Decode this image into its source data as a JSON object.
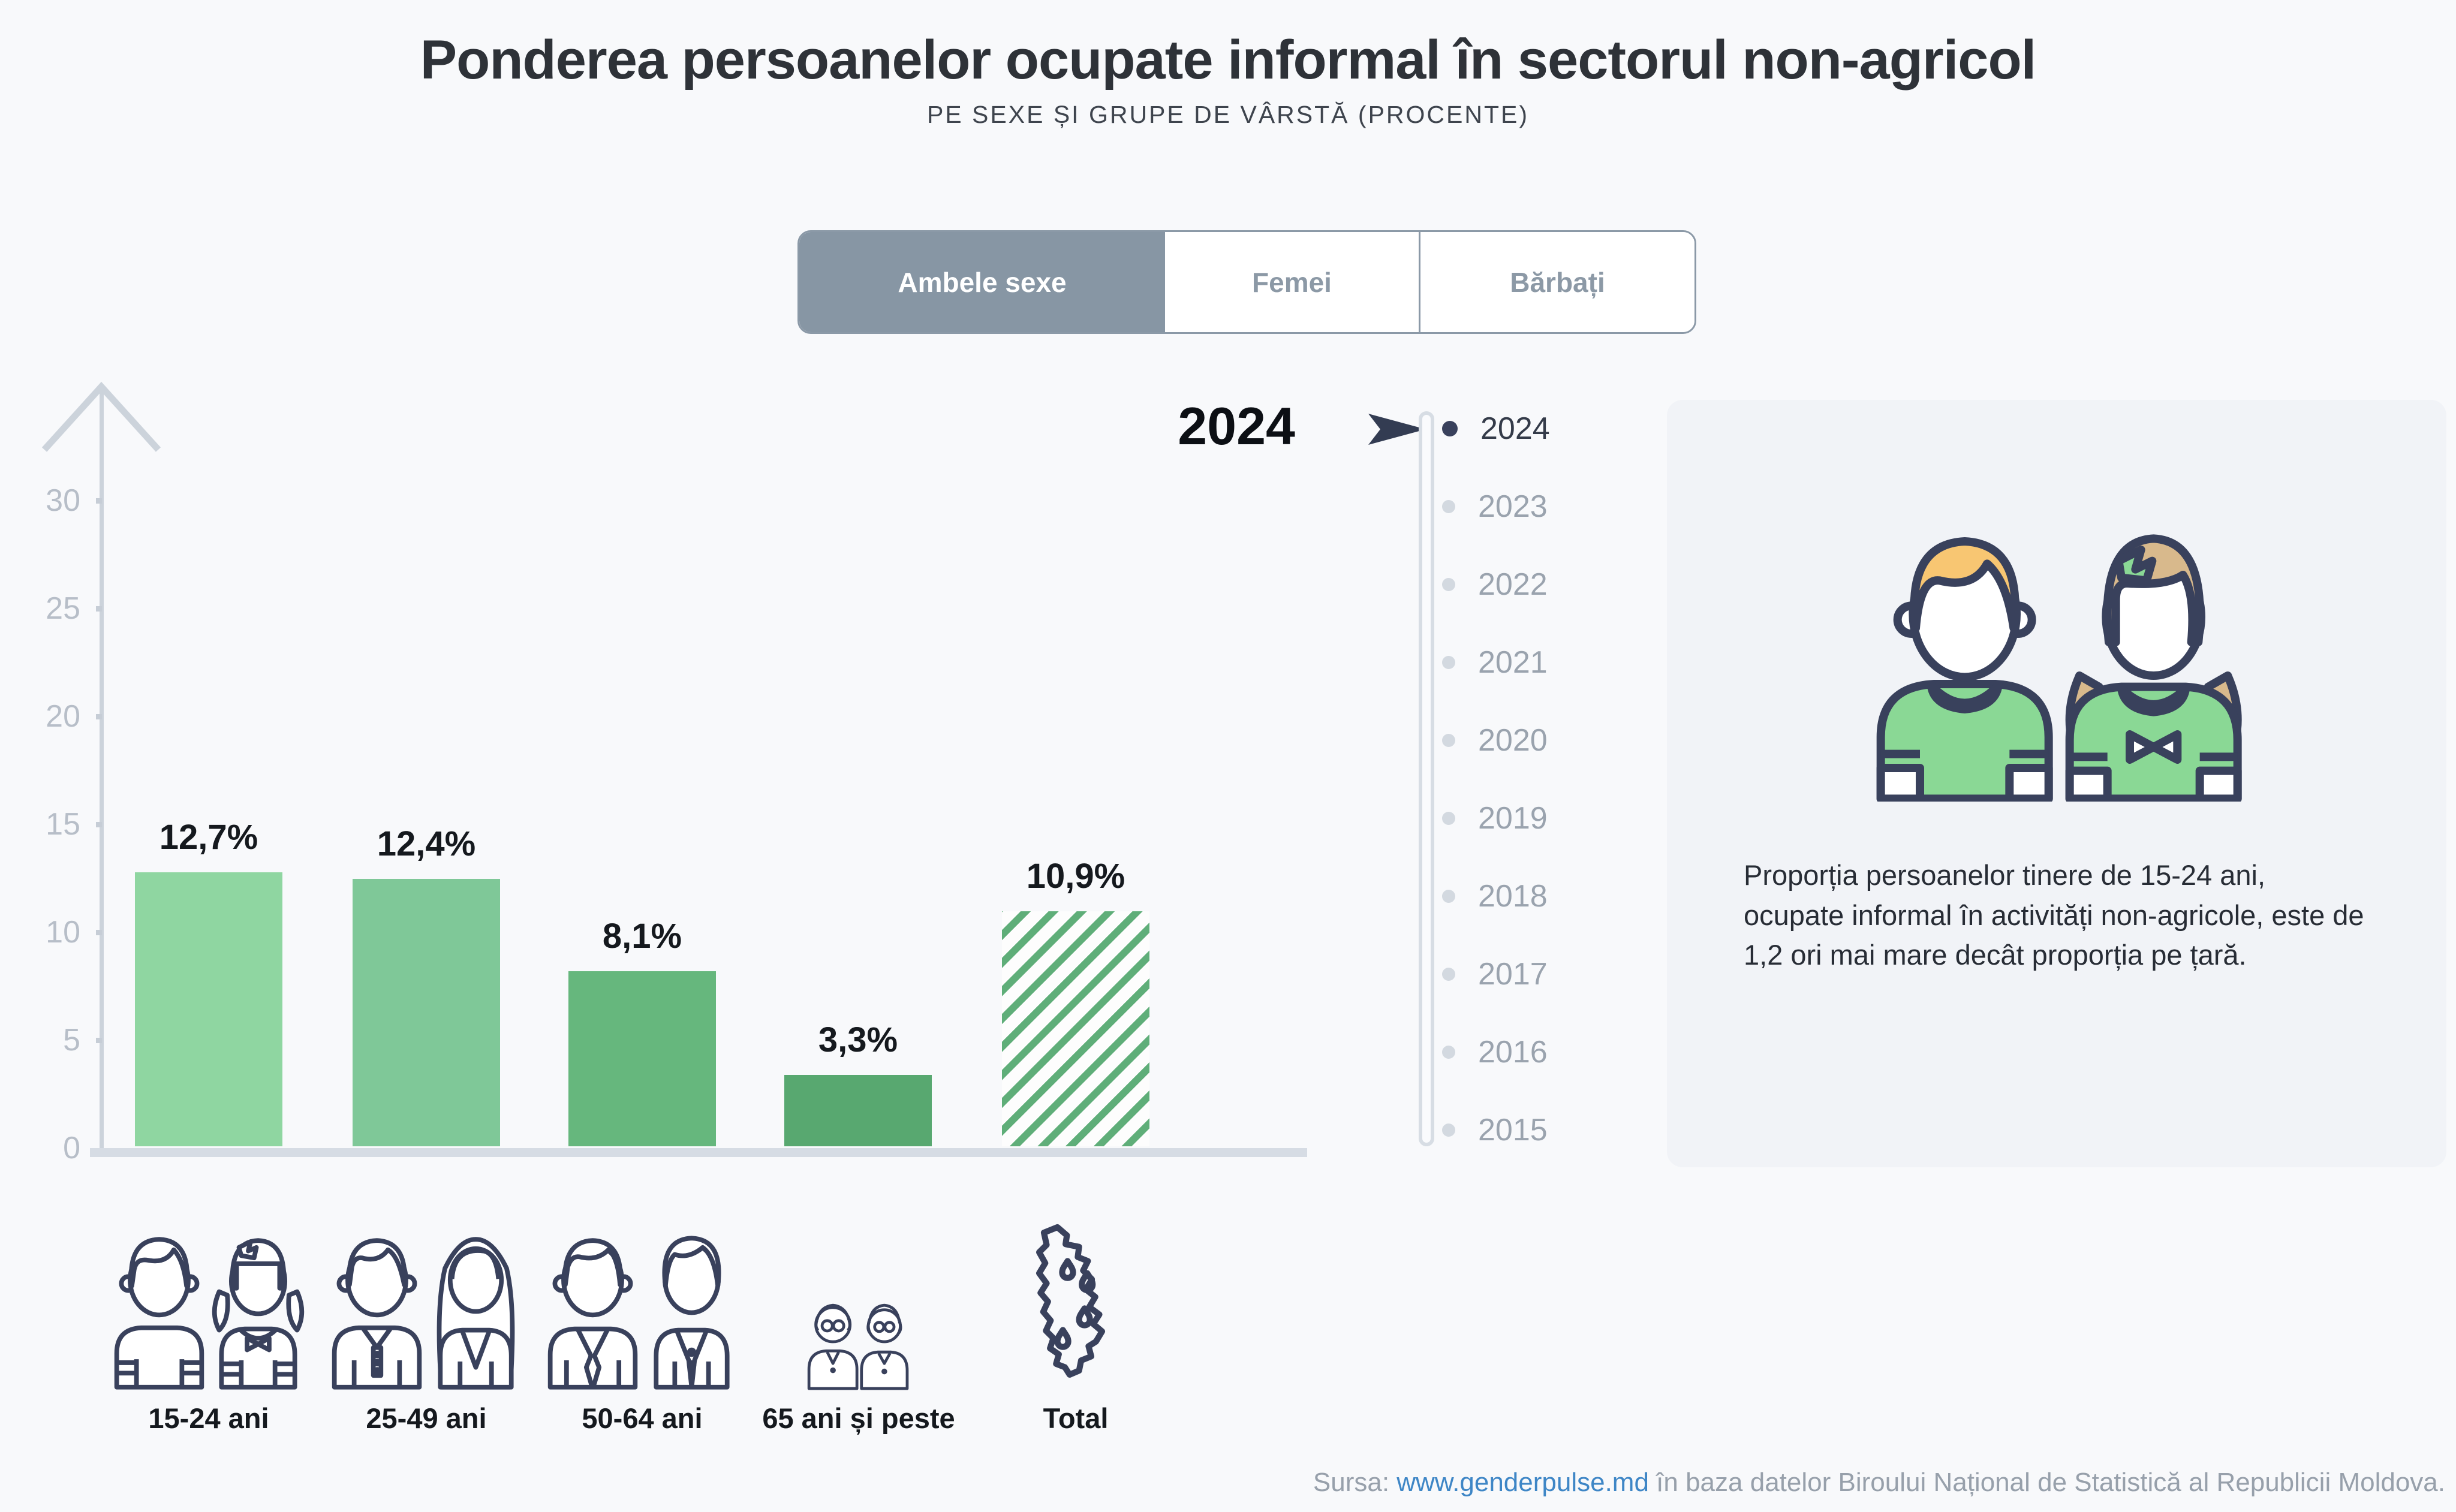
{
  "header": {
    "title": "Ponderea persoanelor ocupate informal în sectorul non-agricol",
    "subtitle": "PE SEXE ȘI GRUPE DE VÂRSTĂ (PROCENTE)"
  },
  "tabs": [
    {
      "label": "Ambele sexe",
      "selected": true
    },
    {
      "label": "Femei",
      "selected": false
    },
    {
      "label": "Bărbați",
      "selected": false
    }
  ],
  "chart_data": {
    "type": "bar",
    "title": "Ponderea persoanelor ocupate informal în sectorul non-agricol",
    "subtitle": "Pe sexe și grupe de vârstă (procente)",
    "categories": [
      "15-24 ani",
      "25-49 ani",
      "50-64 ani",
      "65 ani și peste",
      "Total"
    ],
    "values": [
      12.7,
      12.4,
      8.1,
      3.3,
      10.9
    ],
    "value_labels": [
      "12,7%",
      "12,4%",
      "8,1%",
      "3,3%",
      "10,9%"
    ],
    "bar_colors": [
      "#8fd6a1",
      "#7fc898",
      "#66b77d",
      "#58a870",
      "#5fae79"
    ],
    "hatched": [
      false,
      false,
      false,
      false,
      true
    ],
    "xlabel": "",
    "ylabel": "",
    "ylim": [
      0,
      30
    ],
    "yticks": [
      0,
      5,
      10,
      15,
      20,
      25,
      30
    ],
    "grid": false,
    "legend": "none",
    "selected_year": "2024"
  },
  "timeline": {
    "selected": "2024",
    "years": [
      "2024",
      "2023",
      "2022",
      "2021",
      "2020",
      "2019",
      "2018",
      "2017",
      "2016",
      "2015"
    ]
  },
  "infocard": {
    "text": "Proporția persoanelor tinere de 15-24 ani, ocupate informal în activități non-agricole, este de 1,2 ori mai mare decât proporția pe țară."
  },
  "source": {
    "prefix": "Sursa: ",
    "link": "www.genderpulse.md",
    "suffix": " în baza datelor Biroului Național de Statistică al Republicii Moldova."
  },
  "colors": {
    "page_bg": "#f8f9fb",
    "card_bg": "#f1f3f7",
    "tab_selected_bg": "#8796a4",
    "axis_gray": "#ccd3db",
    "hatch_green": "#5fae79",
    "timeline_active": "#39415c",
    "timeline_inactive": "#d3d9e0",
    "link_blue": "#3e86c6",
    "outline_navy": "#39415c",
    "boy_hair": "#f8c672",
    "girl_hair": "#d8b98c",
    "shirt_green": "#8ad895"
  }
}
